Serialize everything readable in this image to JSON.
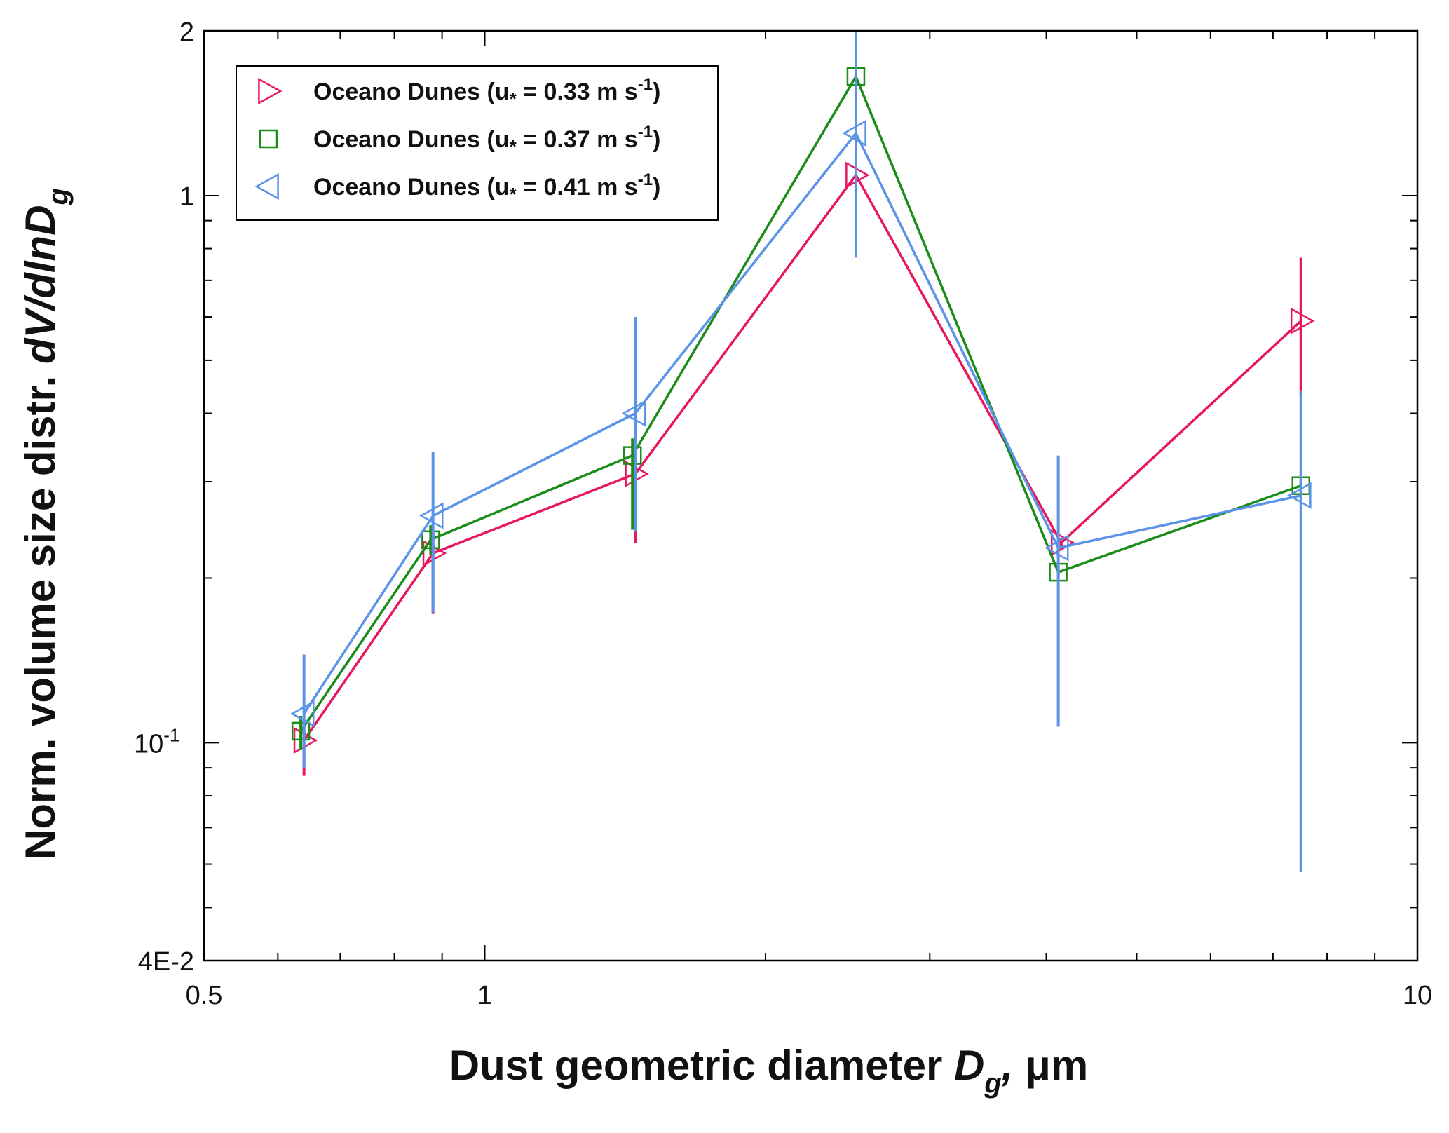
{
  "chart_data": {
    "type": "scatter",
    "xlabel": "Dust geometric diameter D_g, μm",
    "xlabel_parts": {
      "main": "Dust geometric diameter ",
      "var": "D",
      "sub": "g",
      "comma": ",",
      "unit": " μm"
    },
    "ylabel": "Norm. volume size distr. dV/dlnD_g",
    "ylabel_parts": {
      "main": "Norm. volume size distr. ",
      "var": "dV/dlnD",
      "sub": "g"
    },
    "x_scale": "log",
    "y_scale": "log",
    "xlim": [
      0.5,
      10
    ],
    "ylim": [
      0.04,
      2
    ],
    "x_tick_labels": [
      {
        "value": 0.5,
        "label": "0.5"
      },
      {
        "value": 1,
        "label": "1"
      },
      {
        "value": 10,
        "label": "10"
      }
    ],
    "y_tick_labels": [
      {
        "value": 0.04,
        "label": "4E-2"
      },
      {
        "value": 0.1,
        "label": "10",
        "exp": "-1"
      },
      {
        "value": 1,
        "label": "1"
      },
      {
        "value": 2,
        "label": "2"
      }
    ],
    "x_minor_ticks": [
      0.6,
      0.7,
      0.8,
      0.9,
      2,
      3,
      4,
      5,
      6,
      7,
      8,
      9
    ],
    "y_minor_ticks": [
      0.05,
      0.06,
      0.07,
      0.08,
      0.09,
      0.2,
      0.3,
      0.4,
      0.5,
      0.6,
      0.7,
      0.8,
      0.9
    ],
    "grid": false,
    "legend_position": "top-left",
    "series": [
      {
        "name": "Oceano Dunes (u* = 0.33 m s-1)",
        "label_prefix": "Oceano Dunes (u",
        "label_sub": "*",
        "label_mid": " = 0.33 m s",
        "label_sup": "-1",
        "label_end": ")",
        "color": "#e8175d",
        "marker": "triangle-right",
        "x": [
          0.64,
          0.88,
          1.45,
          2.5,
          4.15,
          7.5
        ],
        "y": [
          0.101,
          0.222,
          0.31,
          1.09,
          0.232,
          0.59
        ],
        "y_err_low": [
          0.087,
          0.172,
          0.232,
          0.92,
          0.226,
          0.43
        ],
        "y_err_high": [
          0.108,
          0.244,
          0.34,
          1.12,
          0.236,
          0.77
        ]
      },
      {
        "name": "Oceano Dunes (u* = 0.37 m s-1)",
        "label_prefix": "Oceano Dunes (u",
        "label_sub": "*",
        "label_mid": " = 0.37 m s",
        "label_sup": "-1",
        "label_end": ")",
        "color": "#1a8c1a",
        "marker": "square",
        "x": [
          0.635,
          0.875,
          1.44,
          2.5,
          4.12,
          7.5
        ],
        "y": [
          0.105,
          0.235,
          0.335,
          1.65,
          0.205,
          0.295
        ],
        "y_err_low": [
          0.097,
          0.22,
          0.245,
          1.4,
          0.2,
          0.28
        ],
        "y_err_high": [
          0.112,
          0.25,
          0.36,
          2.0,
          0.21,
          0.31
        ]
      },
      {
        "name": "Oceano Dunes (u* = 0.41 m s-1)",
        "label_prefix": "Oceano Dunes (u",
        "label_sub": "*",
        "label_mid": " = 0.41 m s",
        "label_sup": "-1",
        "label_end": ")",
        "color": "#5b93e8",
        "marker": "triangle-left",
        "x": [
          0.64,
          0.88,
          1.45,
          2.5,
          4.12,
          7.5
        ],
        "y": [
          0.113,
          0.26,
          0.4,
          1.3,
          0.227,
          0.283
        ],
        "y_err_low": [
          0.09,
          0.173,
          0.243,
          0.77,
          0.107,
          0.058
        ],
        "y_err_high": [
          0.145,
          0.34,
          0.6,
          2.0,
          0.335,
          0.44
        ]
      }
    ]
  }
}
